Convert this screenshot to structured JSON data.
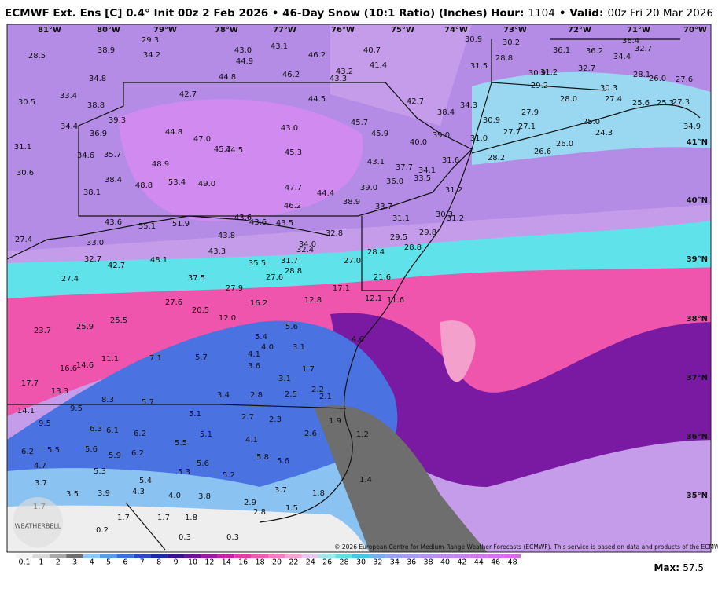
{
  "header": {
    "title": "ECMWF Ext. Ens [C] 0.4° Init 00z 2 Feb 2026 • 46-Day Snow (10:1 Ratio) (Inches)",
    "hour_label": "Hour:",
    "hour": "1104",
    "valid_label": "• Valid:",
    "valid": "00z Fri 20 Mar 2026"
  },
  "longitudes": [
    "81°W",
    "80°W",
    "79°W",
    "78°W",
    "77°W",
    "76°W",
    "75°W",
    "74°W",
    "73°W",
    "72°W",
    "71°W",
    "70°W"
  ],
  "latitudes": [
    "41°N",
    "40°N",
    "39°N",
    "38°N",
    "37°N",
    "36°N",
    "35°N"
  ],
  "map_labels": [
    "28.5",
    "38.9",
    "29.3",
    "34.2",
    "43.0",
    "44.9",
    "43.1",
    "46.2",
    "40.7",
    "41.4",
    "30.9",
    "30.2",
    "36.1",
    "36.2",
    "36.4",
    "32.7",
    "34.4",
    "28.8",
    "31.5",
    "32.7",
    "30.9",
    "31.2",
    "27.6",
    "28.1",
    "26.0",
    "34.8",
    "44.8",
    "46.2",
    "43.2",
    "43.3",
    "29.2",
    "30.3",
    "33.4",
    "42.7",
    "44.5",
    "42.7",
    "34.3",
    "28.0",
    "27.4",
    "25.6",
    "25.3",
    "27.3",
    "30.5",
    "38.8",
    "38.4",
    "27.9",
    "30.9",
    "39.3",
    "45.7",
    "25.0",
    "34.9",
    "34.4",
    "36.9",
    "44.8",
    "47.0",
    "43.0",
    "45.9",
    "39.0",
    "27.1",
    "27.7",
    "24.3",
    "31.0",
    "40.0",
    "45.7",
    "44.5",
    "26.0",
    "26.6",
    "31.1",
    "34.6",
    "35.7",
    "45.3",
    "28.2",
    "31.6",
    "48.9",
    "43.1",
    "37.7",
    "34.1",
    "33.5",
    "30.6",
    "38.4",
    "48.8",
    "53.4",
    "49.0",
    "36.0",
    "39.0",
    "31.2",
    "38.1",
    "47.7",
    "44.4",
    "38.9",
    "46.2",
    "33.7",
    "30.3",
    "31.2",
    "31.1",
    "43.6",
    "55.1",
    "51.9",
    "43.6",
    "43.6",
    "43.5",
    "29.8",
    "32.8",
    "27.4",
    "33.0",
    "43.8",
    "29.5",
    "34.0",
    "32.4",
    "28.8",
    "43.3",
    "28.4",
    "32.7",
    "48.1",
    "27.0",
    "42.7",
    "35.5",
    "31.7",
    "28.8",
    "27.6",
    "21.6",
    "27.4",
    "37.5",
    "27.9",
    "17.1",
    "12.1",
    "11.6",
    "16.2",
    "12.8",
    "27.6",
    "20.5",
    "25.5",
    "12.0",
    "25.9",
    "5.6",
    "23.7",
    "5.4",
    "4.6",
    "4.0",
    "3.1",
    "4.1",
    "11.1",
    "7.1",
    "5.7",
    "16.6",
    "14.6",
    "3.6",
    "1.7",
    "3.1",
    "17.7",
    "13.3",
    "2.2",
    "3.4",
    "2.8",
    "2.5",
    "2.1",
    "8.3",
    "5.7",
    "14.1",
    "9.5",
    "5.1",
    "2.7",
    "2.3",
    "9.5",
    "6.3",
    "6.1",
    "6.2",
    "5.1",
    "4.1",
    "5.5",
    "2.6",
    "1.9",
    "1.2",
    "6.2",
    "5.5",
    "5.6",
    "5.9",
    "6.2",
    "5.8",
    "5.6",
    "5.6",
    "4.7",
    "5.3",
    "5.3",
    "5.2",
    "5.4",
    "1.4",
    "3.7",
    "3.7",
    "1.8",
    "3.5",
    "3.9",
    "4.3",
    "4.0",
    "3.8",
    "2.9",
    "1.7",
    "2.8",
    "1.5",
    "1.7",
    "1.7",
    "1.8",
    "0.2",
    "0.3",
    "0.3"
  ],
  "colorbar": {
    "ticks": [
      "0.1",
      "1",
      "2",
      "3",
      "4",
      "5",
      "6",
      "7",
      "8",
      "9",
      "10",
      "12",
      "14",
      "16",
      "18",
      "20",
      "22",
      "24",
      "26",
      "28",
      "30",
      "32",
      "34",
      "36",
      "38",
      "40",
      "42",
      "44",
      "46",
      "48"
    ],
    "colors": [
      "#f4f4f4",
      "#d8d8d8",
      "#a8a8a8",
      "#6e6e6e",
      "#8ec6f4",
      "#5d9ae8",
      "#3f6fdc",
      "#2a48c8",
      "#1a2aa8",
      "#3a1290",
      "#6a1298",
      "#9a1aa0",
      "#c8239e",
      "#e83aa4",
      "#f05ab0",
      "#f47ec0",
      "#f4a6d4",
      "#e8c8f0",
      "#9ae8f0",
      "#5ee0e8",
      "#48c8dc",
      "#7ab0e8",
      "#9aa4ec",
      "#a89cec",
      "#b494ec",
      "#c08cec",
      "#c884ec",
      "#cc7cea",
      "#d274ea",
      "#d86ce8"
    ],
    "max_label": "Max:",
    "max": "57.5"
  },
  "credit": "© 2026 European Centre for Medium-Range Weather Forecasts (ECMWF). This service is based on data and products of the ECMWF.",
  "logo": "WEATHERBELL"
}
